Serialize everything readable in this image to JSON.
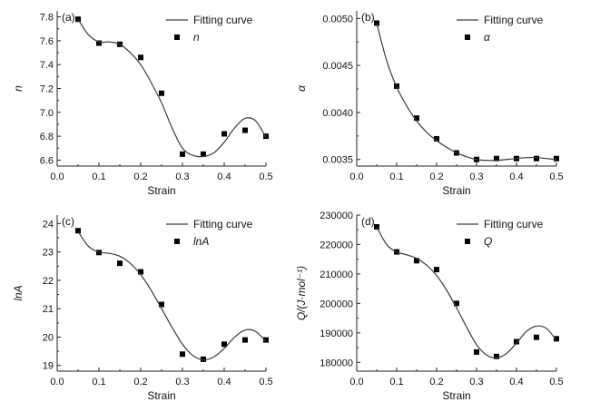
{
  "chart_data": [
    {
      "panel": "(a)",
      "type": "scatter",
      "xlabel": "Strain",
      "ylabel": "n",
      "xlim": [
        0.0,
        0.5
      ],
      "ylim": [
        6.55,
        7.85
      ],
      "xticks": [
        0.0,
        0.1,
        0.2,
        0.3,
        0.4,
        0.5
      ],
      "xtick_labels": [
        "0.0",
        "0.1",
        "0.2",
        "0.3",
        "0.4",
        "0.5"
      ],
      "yticks": [
        6.6,
        6.8,
        7.0,
        7.2,
        7.4,
        7.6,
        7.8
      ],
      "ytick_labels": [
        "6.6",
        "6.8",
        "7.0",
        "7.2",
        "7.4",
        "7.6",
        "7.8"
      ],
      "legend": {
        "position": "top-right",
        "line_label": "Fitting curve",
        "points_label": "n"
      },
      "series": [
        {
          "name": "n",
          "kind": "points",
          "x": [
            0.05,
            0.1,
            0.15,
            0.2,
            0.25,
            0.3,
            0.35,
            0.4,
            0.45,
            0.5
          ],
          "y": [
            7.78,
            7.58,
            7.57,
            7.46,
            7.16,
            6.65,
            6.65,
            6.82,
            6.85,
            6.8
          ]
        },
        {
          "name": "Fitting curve",
          "kind": "line",
          "x": [
            0.05,
            0.075,
            0.1,
            0.125,
            0.15,
            0.175,
            0.2,
            0.225,
            0.25,
            0.275,
            0.3,
            0.325,
            0.35,
            0.375,
            0.4,
            0.425,
            0.45,
            0.475,
            0.5
          ],
          "y": [
            7.78,
            7.65,
            7.59,
            7.59,
            7.57,
            7.5,
            7.4,
            7.25,
            7.08,
            6.87,
            6.7,
            6.64,
            6.63,
            6.66,
            6.75,
            6.87,
            6.95,
            6.93,
            6.79
          ]
        }
      ]
    },
    {
      "panel": "(b)",
      "type": "scatter",
      "xlabel": "Strain",
      "ylabel": "α",
      "xlim": [
        0.0,
        0.5
      ],
      "ylim": [
        0.00343,
        0.00508
      ],
      "xticks": [
        0.0,
        0.1,
        0.2,
        0.3,
        0.4,
        0.5
      ],
      "xtick_labels": [
        "0.0",
        "0.1",
        "0.2",
        "0.3",
        "0.4",
        "0.5"
      ],
      "yticks": [
        0.0035,
        0.004,
        0.0045,
        0.005
      ],
      "ytick_labels": [
        "0.0035",
        "0.0040",
        "0.0045",
        "0.0050"
      ],
      "legend": {
        "position": "top-right",
        "line_label": "Fitting curve",
        "points_label": "α"
      },
      "series": [
        {
          "name": "α",
          "kind": "points",
          "x": [
            0.05,
            0.1,
            0.15,
            0.2,
            0.25,
            0.3,
            0.35,
            0.4,
            0.45,
            0.5
          ],
          "y": [
            0.00495,
            0.00428,
            0.00394,
            0.00372,
            0.00357,
            0.0035,
            0.00351,
            0.00351,
            0.00351,
            0.00351
          ]
        },
        {
          "name": "Fitting curve",
          "kind": "line",
          "x": [
            0.05,
            0.075,
            0.1,
            0.125,
            0.15,
            0.175,
            0.2,
            0.225,
            0.25,
            0.275,
            0.3,
            0.325,
            0.35,
            0.375,
            0.4,
            0.425,
            0.45,
            0.475,
            0.5
          ],
          "y": [
            0.00495,
            0.00455,
            0.00427,
            0.00407,
            0.00391,
            0.00379,
            0.0037,
            0.00363,
            0.00357,
            0.00353,
            0.0035,
            0.00349,
            0.00349,
            0.0035,
            0.00351,
            0.00352,
            0.00352,
            0.00351,
            0.0035
          ]
        }
      ]
    },
    {
      "panel": "(c)",
      "type": "scatter",
      "xlabel": "Strain",
      "ylabel": "lnA",
      "xlim": [
        0.0,
        0.5
      ],
      "ylim": [
        18.8,
        24.3
      ],
      "xticks": [
        0.0,
        0.1,
        0.2,
        0.3,
        0.4,
        0.5
      ],
      "xtick_labels": [
        "0.0",
        "0.1",
        "0.2",
        "0.3",
        "0.4",
        "0.5"
      ],
      "yticks": [
        19,
        20,
        21,
        22,
        23,
        24
      ],
      "ytick_labels": [
        "19",
        "20",
        "21",
        "22",
        "23",
        "24"
      ],
      "legend": {
        "position": "top-right",
        "line_label": "Fitting curve",
        "points_label": "lnA"
      },
      "series": [
        {
          "name": "lnA",
          "kind": "points",
          "x": [
            0.05,
            0.1,
            0.15,
            0.2,
            0.25,
            0.3,
            0.35,
            0.4,
            0.45,
            0.5
          ],
          "y": [
            23.75,
            22.98,
            22.6,
            22.3,
            21.15,
            19.4,
            19.22,
            19.75,
            19.9,
            19.9
          ]
        },
        {
          "name": "Fitting curve",
          "kind": "line",
          "x": [
            0.05,
            0.075,
            0.1,
            0.125,
            0.15,
            0.175,
            0.2,
            0.225,
            0.25,
            0.275,
            0.3,
            0.325,
            0.35,
            0.375,
            0.4,
            0.425,
            0.45,
            0.475,
            0.5
          ],
          "y": [
            23.72,
            23.2,
            23.0,
            22.95,
            22.85,
            22.6,
            22.2,
            21.65,
            21.0,
            20.35,
            19.75,
            19.35,
            19.2,
            19.3,
            19.6,
            20.0,
            20.25,
            20.2,
            19.85
          ]
        }
      ]
    },
    {
      "panel": "(d)",
      "type": "scatter",
      "xlabel": "Strain",
      "ylabel": "Q/(J·mol⁻¹)",
      "xlim": [
        0.0,
        0.5
      ],
      "ylim": [
        177000,
        230000
      ],
      "xticks": [
        0.0,
        0.1,
        0.2,
        0.3,
        0.4,
        0.5
      ],
      "xtick_labels": [
        "0.0",
        "0.1",
        "0.2",
        "0.3",
        "0.4",
        "0.5"
      ],
      "yticks": [
        180000,
        190000,
        200000,
        210000,
        220000,
        230000
      ],
      "ytick_labels": [
        "180000",
        "190000",
        "200000",
        "210000",
        "220000",
        "230000"
      ],
      "legend": {
        "position": "top-right",
        "line_label": "Fitting curve",
        "points_label": "Q"
      },
      "series": [
        {
          "name": "Q",
          "kind": "points",
          "x": [
            0.05,
            0.1,
            0.15,
            0.2,
            0.25,
            0.3,
            0.35,
            0.4,
            0.45,
            0.5
          ],
          "y": [
            226000,
            217500,
            214500,
            211500,
            200000,
            183500,
            182000,
            187000,
            188500,
            188000
          ]
        },
        {
          "name": "Fitting curve",
          "kind": "line",
          "x": [
            0.05,
            0.075,
            0.1,
            0.125,
            0.15,
            0.175,
            0.2,
            0.225,
            0.25,
            0.275,
            0.3,
            0.325,
            0.35,
            0.375,
            0.4,
            0.425,
            0.45,
            0.475,
            0.5
          ],
          "y": [
            226000,
            220000,
            217500,
            216500,
            215300,
            213000,
            209500,
            204500,
            198500,
            192000,
            186000,
            182500,
            181500,
            183000,
            186500,
            190500,
            192300,
            191500,
            187500
          ]
        }
      ]
    }
  ]
}
